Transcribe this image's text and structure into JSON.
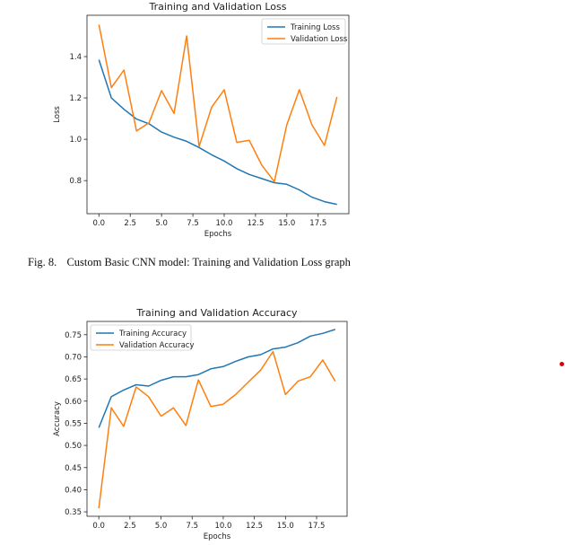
{
  "chart_data": [
    {
      "type": "line",
      "title": "Training and Validation Loss",
      "xlabel": "Epochs",
      "ylabel": "Loss",
      "xlim": [
        -0.95,
        19.95
      ],
      "ylim": [
        0.64,
        1.6
      ],
      "xticks": [
        0.0,
        2.5,
        5.0,
        7.5,
        10.0,
        12.5,
        15.0,
        17.5
      ],
      "xtick_labels": [
        "0.0",
        "2.5",
        "5.0",
        "7.5",
        "10.0",
        "12.5",
        "15.0",
        "17.5"
      ],
      "yticks": [
        0.8,
        1.0,
        1.2,
        1.4
      ],
      "ytick_labels": [
        "0.8",
        "1.0",
        "1.2",
        "1.4"
      ],
      "legend_position": "top-right",
      "x": [
        0,
        1,
        2,
        3,
        4,
        5,
        6,
        7,
        8,
        9,
        10,
        11,
        12,
        13,
        14,
        15,
        16,
        17,
        18,
        19
      ],
      "series": [
        {
          "name": "Training Loss",
          "color": "#1f77b4",
          "values": [
            1.385,
            1.2,
            1.145,
            1.098,
            1.075,
            1.035,
            1.01,
            0.99,
            0.96,
            0.925,
            0.895,
            0.858,
            0.83,
            0.81,
            0.79,
            0.782,
            0.755,
            0.72,
            0.698,
            0.685
          ]
        },
        {
          "name": "Validation Loss",
          "color": "#ff7f0e",
          "values": [
            1.555,
            1.25,
            1.335,
            1.04,
            1.08,
            1.235,
            1.125,
            1.5,
            0.965,
            1.155,
            1.24,
            0.985,
            0.995,
            0.875,
            0.795,
            1.07,
            1.24,
            1.07,
            0.97,
            1.205
          ]
        }
      ],
      "grid": false
    },
    {
      "type": "line",
      "title": "Training and Validation Accuracy",
      "xlabel": "Epochs",
      "ylabel": "Accuracy",
      "xlim": [
        -0.95,
        19.95
      ],
      "ylim": [
        0.34,
        0.78
      ],
      "xticks": [
        0.0,
        2.5,
        5.0,
        7.5,
        10.0,
        12.5,
        15.0,
        17.5
      ],
      "xtick_labels": [
        "0.0",
        "2.5",
        "5.0",
        "7.5",
        "10.0",
        "12.5",
        "15.0",
        "17.5"
      ],
      "yticks": [
        0.35,
        0.4,
        0.45,
        0.5,
        0.55,
        0.6,
        0.65,
        0.7,
        0.75
      ],
      "ytick_labels": [
        "0.35",
        "0.40",
        "0.45",
        "0.50",
        "0.55",
        "0.60",
        "0.65",
        "0.70",
        "0.75"
      ],
      "legend_position": "top-left",
      "x": [
        0,
        1,
        2,
        3,
        4,
        5,
        6,
        7,
        8,
        9,
        10,
        11,
        12,
        13,
        14,
        15,
        16,
        17,
        18,
        19
      ],
      "series": [
        {
          "name": "Training Accuracy",
          "color": "#1f77b4",
          "values": [
            0.54,
            0.61,
            0.625,
            0.637,
            0.634,
            0.647,
            0.655,
            0.655,
            0.66,
            0.673,
            0.678,
            0.69,
            0.7,
            0.705,
            0.718,
            0.722,
            0.732,
            0.747,
            0.753,
            0.762
          ]
        },
        {
          "name": "Validation Accuracy",
          "color": "#ff7f0e",
          "values": [
            0.358,
            0.585,
            0.543,
            0.632,
            0.61,
            0.566,
            0.585,
            0.545,
            0.648,
            0.588,
            0.593,
            0.615,
            0.643,
            0.67,
            0.712,
            0.615,
            0.645,
            0.655,
            0.693,
            0.645
          ]
        }
      ],
      "grid": false
    }
  ],
  "captions": {
    "loss": {
      "label": "Fig. 8.",
      "text": "Custom Basic CNN model: Training and Validation Loss graph"
    }
  },
  "colors": {
    "marker_dot": "#e00000"
  }
}
